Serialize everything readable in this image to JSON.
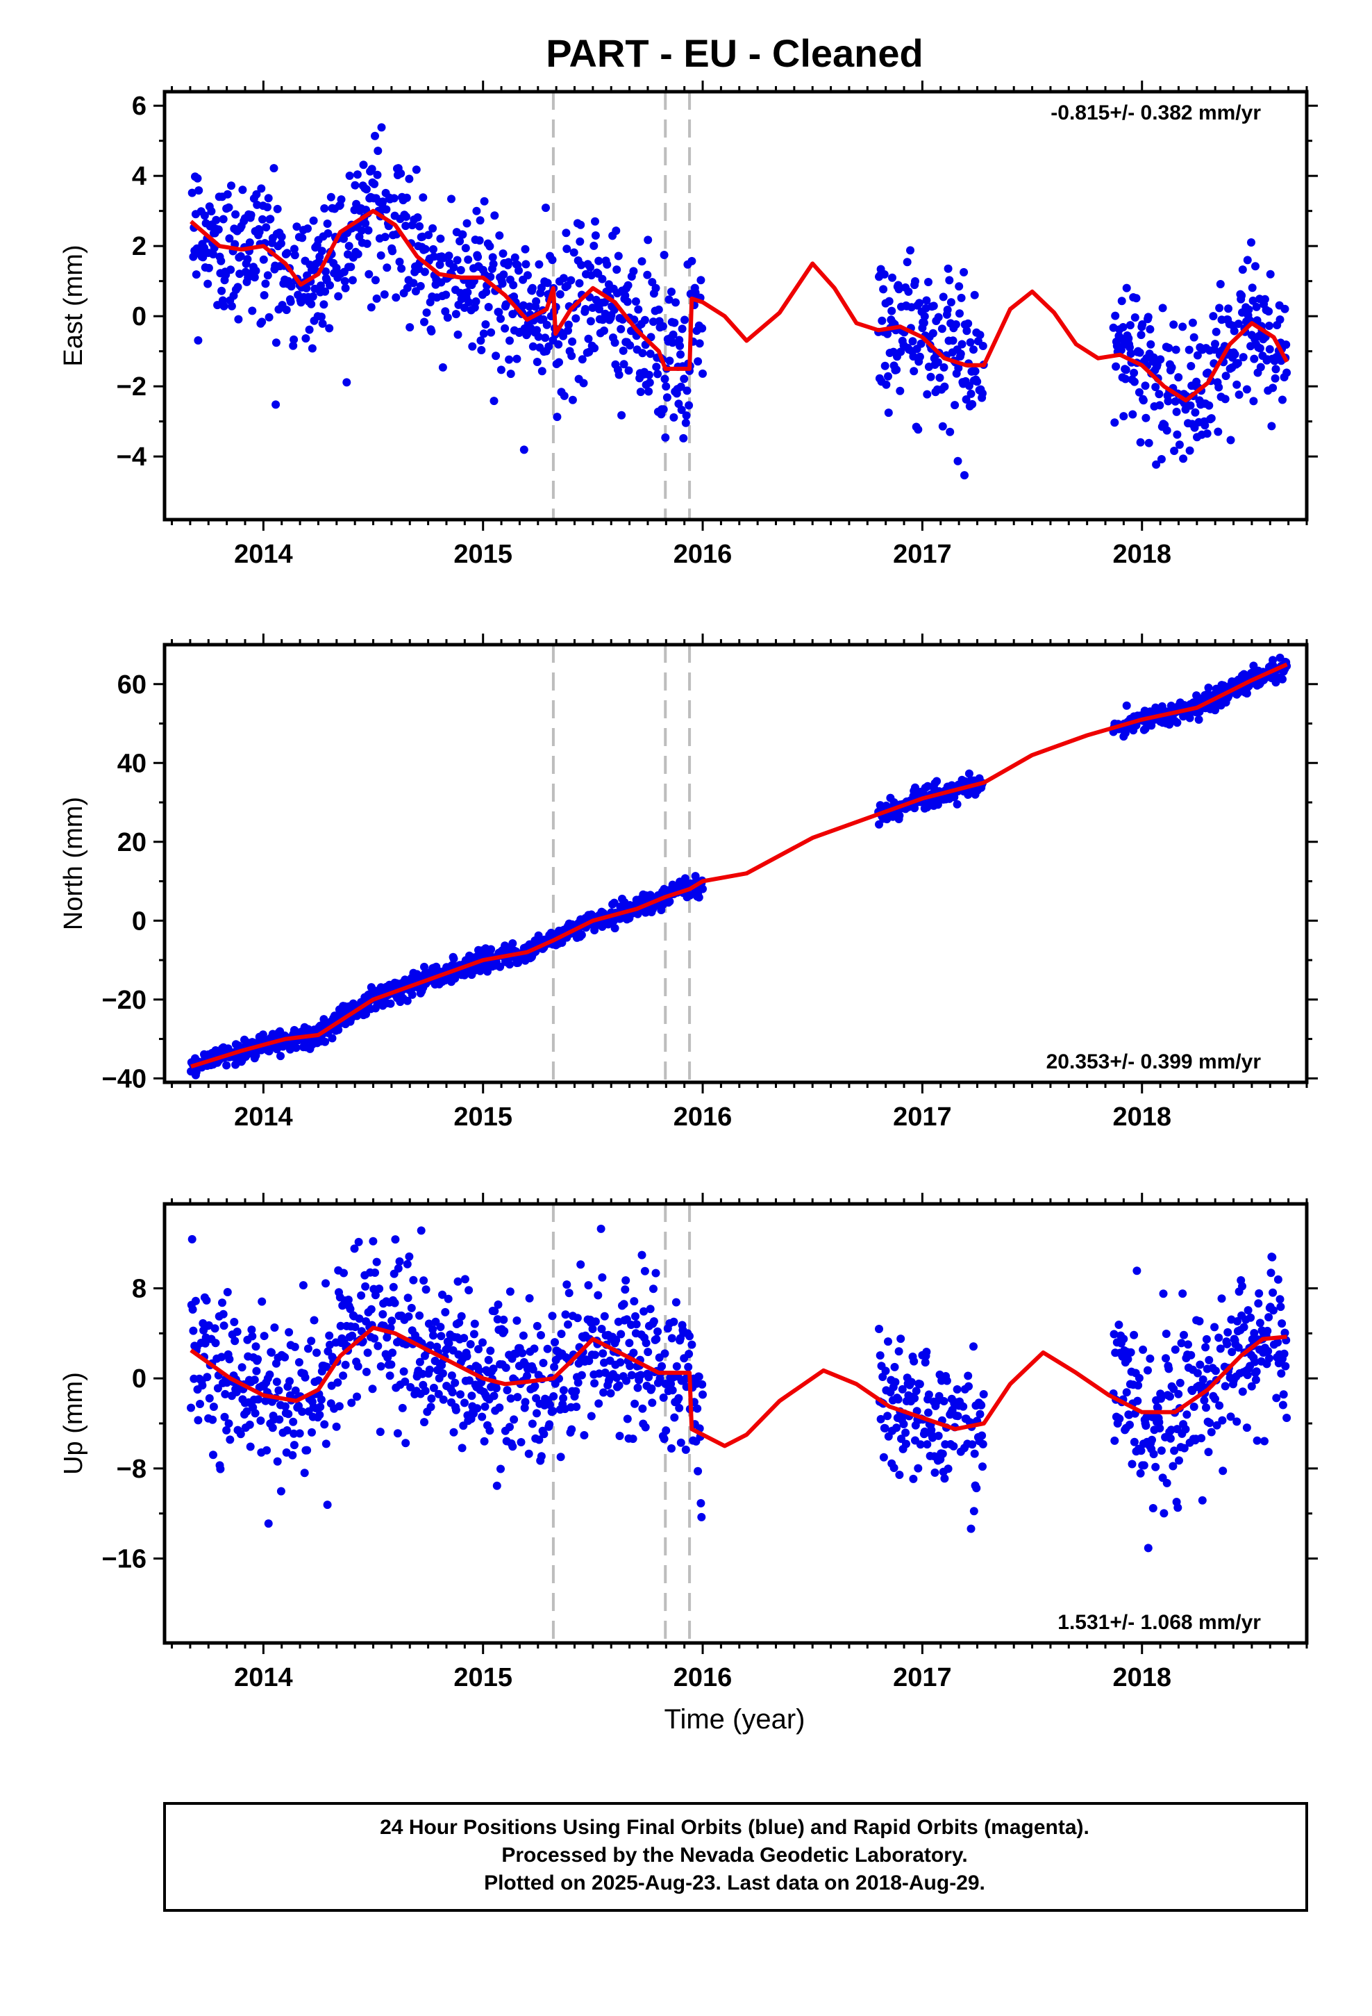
{
  "title": "PART  - EU - Cleaned",
  "xlabel": "Time (year)",
  "footer": [
    "24 Hour Positions Using Final Orbits (blue) and Rapid Orbits (magenta).",
    "Processed by the Nevada Geodetic Laboratory.",
    "Plotted on 2025-Aug-23. Last data on 2018-Aug-29."
  ],
  "colors": {
    "points": "#0000ee",
    "model": "#ee0000",
    "events": "#bdbdbd",
    "frame": "#000000"
  },
  "chart_data": [
    {
      "type": "scatter",
      "name_key": "east",
      "ylabel": "East (mm)",
      "rate_label": "-0.815+/- 0.382 mm/yr",
      "rate_position": "top-right",
      "xlim": [
        2013.55,
        2018.75
      ],
      "ylim": [
        -5.8,
        6.4
      ],
      "xticks": [
        2014,
        2015,
        2016,
        2017,
        2018
      ],
      "yticks": [
        -4,
        -2,
        0,
        2,
        4,
        6
      ],
      "event_lines": [
        2015.32,
        2015.83,
        2015.94
      ],
      "data_ranges": [
        [
          2013.67,
          2016.0
        ],
        [
          2016.8,
          2017.28
        ],
        [
          2017.87,
          2018.66
        ]
      ],
      "model_curve": {
        "x": [
          2013.67,
          2013.8,
          2013.9,
          2014.0,
          2014.1,
          2014.17,
          2014.25,
          2014.35,
          2014.5,
          2014.6,
          2014.7,
          2014.8,
          2014.9,
          2015.0,
          2015.1,
          2015.2,
          2015.29,
          2015.32,
          2015.33,
          2015.4,
          2015.5,
          2015.6,
          2015.7,
          2015.8,
          2015.83,
          2015.94,
          2015.95,
          2016.0,
          2016.1,
          2016.2,
          2016.35,
          2016.5,
          2016.6,
          2016.7,
          2016.8,
          2016.9,
          2017.0,
          2017.1,
          2017.2,
          2017.28,
          2017.4,
          2017.5,
          2017.6,
          2017.7,
          2017.8,
          2017.9,
          2018.0,
          2018.1,
          2018.2,
          2018.3,
          2018.4,
          2018.5,
          2018.6,
          2018.66
        ],
        "y": [
          2.7,
          2.0,
          1.9,
          2.0,
          1.5,
          0.9,
          1.2,
          2.4,
          3.0,
          2.6,
          1.7,
          1.2,
          1.1,
          1.1,
          0.6,
          -0.1,
          0.2,
          0.8,
          -0.5,
          0.2,
          0.8,
          0.4,
          -0.4,
          -1.0,
          -1.5,
          -1.5,
          0.5,
          0.4,
          0.0,
          -0.7,
          0.1,
          1.5,
          0.8,
          -0.2,
          -0.4,
          -0.3,
          -0.6,
          -1.2,
          -1.4,
          -1.4,
          0.2,
          0.7,
          0.1,
          -0.8,
          -1.2,
          -1.1,
          -1.4,
          -2.0,
          -2.4,
          -1.9,
          -0.8,
          -0.2,
          -0.6,
          -1.3
        ]
      }
    },
    {
      "type": "scatter",
      "name_key": "north",
      "ylabel": "North (mm)",
      "rate_label": "20.353+/- 0.399 mm/yr",
      "rate_position": "bottom-right",
      "xlim": [
        2013.55,
        2018.75
      ],
      "ylim": [
        -41,
        70
      ],
      "xticks": [
        2014,
        2015,
        2016,
        2017,
        2018
      ],
      "yticks": [
        -40,
        -20,
        0,
        20,
        40,
        60
      ],
      "event_lines": [
        2015.32,
        2015.83,
        2015.94
      ],
      "data_ranges": [
        [
          2013.67,
          2016.0
        ],
        [
          2016.8,
          2017.28
        ],
        [
          2017.87,
          2018.66
        ]
      ],
      "model_curve": {
        "x": [
          2013.67,
          2013.9,
          2014.1,
          2014.25,
          2014.5,
          2014.75,
          2015.0,
          2015.2,
          2015.32,
          2015.5,
          2015.7,
          2015.83,
          2015.94,
          2016.0,
          2016.2,
          2016.5,
          2016.8,
          2017.0,
          2017.28,
          2017.5,
          2017.75,
          2018.0,
          2018.25,
          2018.5,
          2018.66
        ],
        "y": [
          -37,
          -33,
          -30,
          -29,
          -20,
          -15,
          -10,
          -8,
          -5,
          0,
          3,
          6,
          8,
          10,
          12,
          21,
          27,
          31,
          35,
          42,
          47,
          51,
          54,
          61,
          65
        ]
      }
    },
    {
      "type": "scatter",
      "name_key": "up",
      "ylabel": "Up (mm)",
      "rate_label": "1.531+/- 1.068 mm/yr",
      "rate_position": "bottom-right",
      "xlim": [
        2013.55,
        2018.75
      ],
      "ylim": [
        -23.5,
        15.5
      ],
      "xticks": [
        2014,
        2015,
        2016,
        2017,
        2018
      ],
      "yticks": [
        -16,
        -8,
        0,
        8
      ],
      "event_lines": [
        2015.32,
        2015.83,
        2015.94
      ],
      "data_ranges": [
        [
          2013.67,
          2016.0
        ],
        [
          2016.8,
          2017.28
        ],
        [
          2017.87,
          2018.66
        ]
      ],
      "model_curve": {
        "x": [
          2013.67,
          2013.85,
          2014.0,
          2014.15,
          2014.25,
          2014.35,
          2014.5,
          2014.6,
          2014.75,
          2014.9,
          2015.0,
          2015.1,
          2015.2,
          2015.32,
          2015.4,
          2015.5,
          2015.6,
          2015.7,
          2015.8,
          2015.94,
          2015.95,
          2016.1,
          2016.2,
          2016.35,
          2016.55,
          2016.7,
          2016.85,
          2017.0,
          2017.15,
          2017.28,
          2017.4,
          2017.55,
          2017.7,
          2017.85,
          2018.0,
          2018.15,
          2018.3,
          2018.45,
          2018.55,
          2018.66
        ],
        "y": [
          2.5,
          0.0,
          -1.5,
          -2.0,
          -1.0,
          2.0,
          4.5,
          4.0,
          2.5,
          1.0,
          0.0,
          -0.5,
          -0.3,
          0.0,
          1.5,
          3.5,
          2.5,
          1.5,
          0.5,
          0.5,
          -4.5,
          -6.0,
          -5.0,
          -2.0,
          0.7,
          -0.5,
          -2.5,
          -3.5,
          -4.5,
          -4.0,
          -0.5,
          2.3,
          0.5,
          -1.5,
          -3.0,
          -3.0,
          -1.0,
          2.0,
          3.5,
          3.7
        ]
      }
    }
  ]
}
